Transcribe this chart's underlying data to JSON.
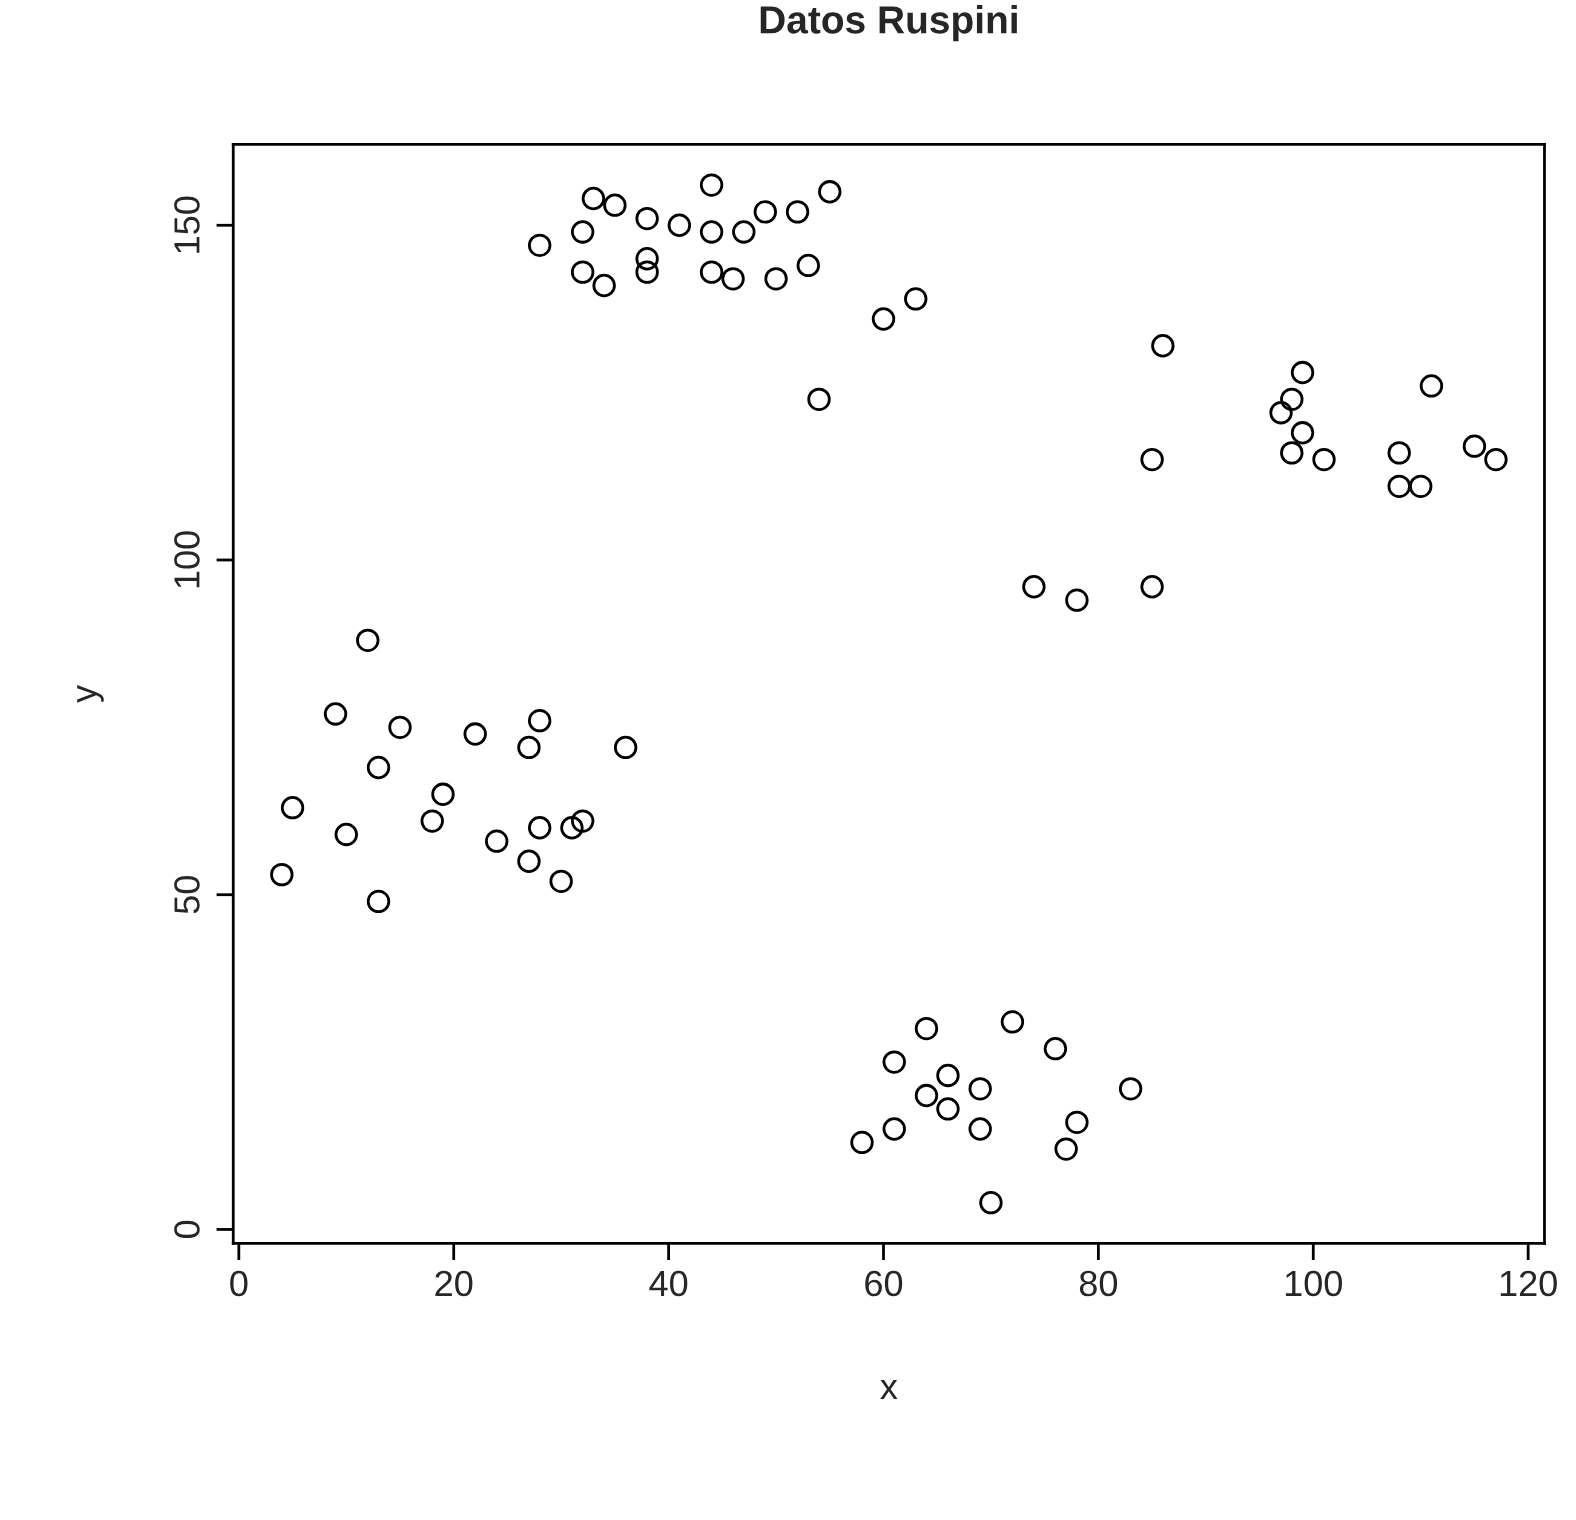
{
  "chart_data": {
    "type": "scatter",
    "title": "Datos Ruspini",
    "xlabel": "x",
    "ylabel": "y",
    "x": [
      4,
      5,
      10,
      9,
      13,
      13,
      12,
      15,
      18,
      19,
      22,
      27,
      28,
      24,
      27,
      28,
      30,
      31,
      32,
      36,
      28,
      32,
      35,
      33,
      38,
      41,
      38,
      38,
      32,
      34,
      44,
      44,
      44,
      46,
      47,
      49,
      50,
      53,
      52,
      55,
      54,
      60,
      63,
      86,
      85,
      85,
      78,
      74,
      97,
      98,
      98,
      99,
      99,
      101,
      108,
      110,
      108,
      111,
      115,
      117,
      70,
      77,
      83,
      61,
      69,
      78,
      66,
      58,
      64,
      69,
      66,
      61,
      76,
      72,
      64
    ],
    "series": [
      {
        "color": "#000000",
        "values": [
          53,
          63,
          59,
          77,
          49,
          69,
          88,
          75,
          61,
          65,
          74,
          72,
          76,
          58,
          55,
          60,
          52,
          60,
          61,
          72,
          147,
          149,
          153,
          154,
          151,
          150,
          145,
          143,
          143,
          141,
          156,
          149,
          143,
          142,
          149,
          152,
          142,
          144,
          152,
          155,
          124,
          136,
          139,
          132,
          115,
          96,
          94,
          96,
          122,
          116,
          124,
          119,
          128,
          115,
          111,
          111,
          116,
          126,
          117,
          115,
          4,
          12,
          21,
          15,
          15,
          16,
          18,
          13,
          20,
          21,
          23,
          25,
          27,
          31,
          30
        ]
      }
    ],
    "marker": "circle",
    "grid": false,
    "xlim": [
      -0.52,
      121.52
    ],
    "ylim": [
      -2.08,
      162.08
    ],
    "xticks": [
      0,
      20,
      40,
      60,
      80,
      100,
      120
    ],
    "yticks": [
      0,
      50,
      100,
      150
    ]
  }
}
